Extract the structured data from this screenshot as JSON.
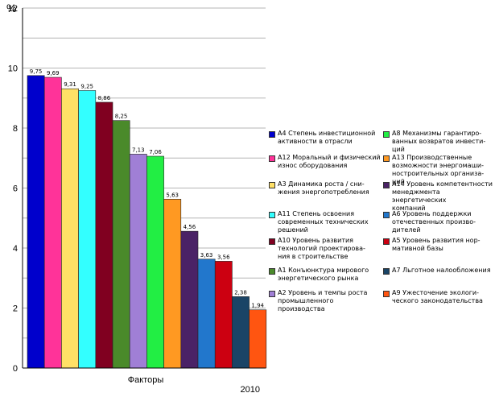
{
  "chart_data": {
    "type": "bar",
    "unit_label": "%",
    "xlabel": "Факторы",
    "year_label": "2010",
    "ylim": [
      0,
      12
    ],
    "yticks": [
      0,
      2,
      4,
      6,
      8,
      10,
      12
    ],
    "grid": true,
    "legend_position": "right",
    "series": [
      {
        "name": "А4 Степень инвестиционной\nактивности в отрасли",
        "value": 9.75,
        "value_label": "9,75",
        "color": "#0000cc"
      },
      {
        "name": "А12 Моральный и физический\nизнос оборудования",
        "value": 9.69,
        "value_label": "9,69",
        "color": "#ff3399"
      },
      {
        "name": "А3 Динамика роста / сни-\nжения энергопотребления",
        "value": 9.31,
        "value_label": "9,31",
        "color": "#ffe066"
      },
      {
        "name": "А11 Степень освоения\nсовременных технических\nрешений",
        "value": 9.25,
        "value_label": "9,25",
        "color": "#33ffff"
      },
      {
        "name": "А10 Уровень развития\nтехнологий проектирова-\nния в строительстве",
        "value": 8.86,
        "value_label": "8,86",
        "color": "#800020"
      },
      {
        "name": "А1 Конъюнктура мирового\nэнергетического рынка",
        "value": 8.25,
        "value_label": "8,25",
        "color": "#4a8a2a"
      },
      {
        "name": "А2 Уровень и темпы роста\nпромышленного производства",
        "value": 7.13,
        "value_label": "7,13",
        "color": "#a07fd6"
      },
      {
        "name": "А8 Механизмы гарантиро-\nванных возвратов инвести-\nций",
        "value": 7.06,
        "value_label": "7,06",
        "color": "#22ee44"
      },
      {
        "name": "А13 Производственные\nвозможности энергомаши-\nностроительных организа-\nций",
        "value": 5.63,
        "value_label": "5,63",
        "color": "#ff9922"
      },
      {
        "name": "А14 Уровень компетентности\nменеджмента энергетических\nкомпаний",
        "value": 4.56,
        "value_label": "4,56",
        "color": "#4a2266"
      },
      {
        "name": "А6 Уровень поддержки\nотечественных произво-\nдителей",
        "value": 3.63,
        "value_label": "3,63",
        "color": "#2277cc"
      },
      {
        "name": "А5 Уровень развития нор-\nмативной базы",
        "value": 3.56,
        "value_label": "3,56",
        "color": "#cc0011"
      },
      {
        "name": "А7 Льготное налообложения",
        "value": 2.38,
        "value_label": "2,38",
        "color": "#1a4466"
      },
      {
        "name": "А9 Ужесточение экологи-\nческого законодательства",
        "value": 1.94,
        "value_label": "1,94",
        "color": "#ff5511"
      }
    ]
  }
}
